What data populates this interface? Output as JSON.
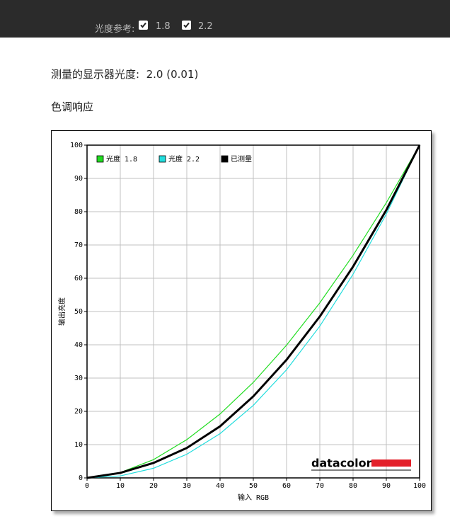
{
  "header": {
    "label": "光度参考:",
    "options": [
      "1.8",
      "2.2"
    ]
  },
  "measured": {
    "label": "测量的显示器光度:",
    "value": "2.0 (0.01)"
  },
  "section_title": "色调响应",
  "chart_data": {
    "type": "line",
    "x_label": "输入 RGB",
    "y_label": "输出亮度",
    "logo": "datacolor",
    "x": [
      0,
      10,
      20,
      30,
      40,
      50,
      60,
      70,
      80,
      90,
      100
    ],
    "series": [
      {
        "name": "光度 1.8",
        "color": "#22dd22",
        "values": [
          0,
          1.6,
          5.5,
          11.5,
          19.2,
          28.7,
          39.9,
          52.6,
          66.9,
          82.7,
          100
        ]
      },
      {
        "name": "光度 2.2",
        "color": "#22dddd",
        "values": [
          0,
          0.6,
          2.9,
          7.1,
          13.3,
          21.8,
          32.5,
          45.6,
          61.2,
          79.3,
          100
        ]
      },
      {
        "name": "已测量",
        "color": "#000000",
        "values": [
          0,
          1.5,
          4.5,
          9,
          15.5,
          24.5,
          35.5,
          48.5,
          63.5,
          80.5,
          100
        ]
      }
    ],
    "xlim": [
      0,
      100
    ],
    "ylim": [
      0,
      100
    ],
    "xticks": [
      0,
      10,
      20,
      30,
      40,
      50,
      60,
      70,
      80,
      90,
      100
    ],
    "yticks": [
      0,
      10,
      20,
      30,
      40,
      50,
      60,
      70,
      80,
      90,
      100
    ],
    "grid": true
  }
}
